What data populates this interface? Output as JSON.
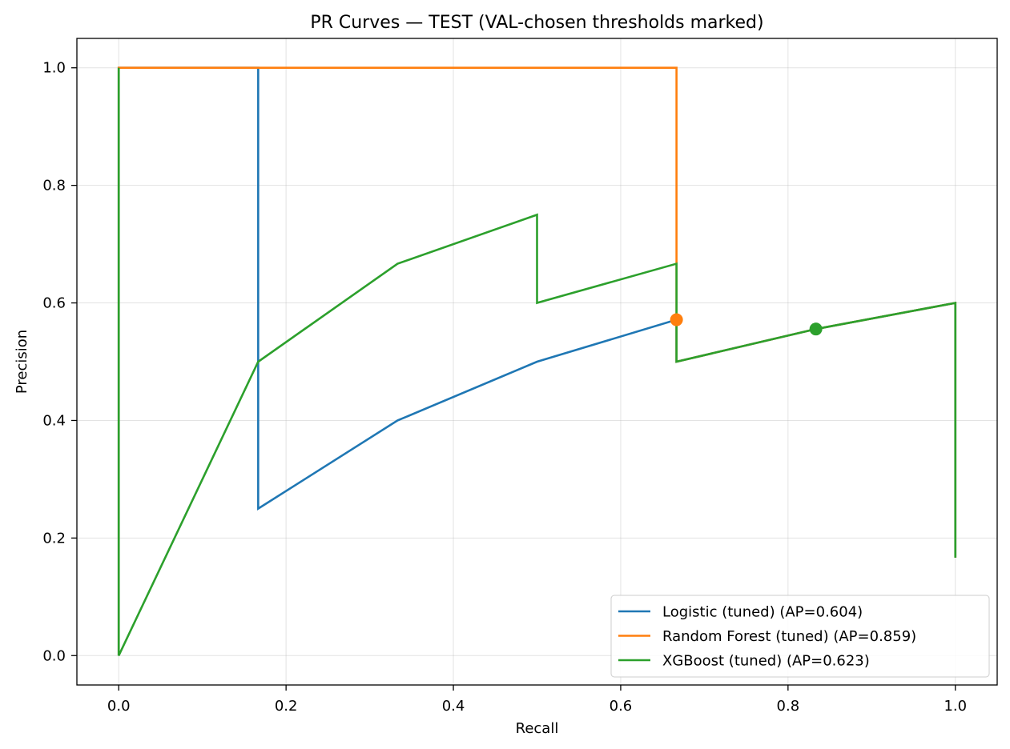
{
  "chart_data": {
    "type": "line",
    "title": "PR Curves — TEST (VAL-chosen thresholds marked)",
    "xlabel": "Recall",
    "ylabel": "Precision",
    "xlim": [
      -0.05,
      1.05
    ],
    "ylim": [
      -0.05,
      1.05
    ],
    "xticks": [
      0.0,
      0.2,
      0.4,
      0.6,
      0.8,
      1.0
    ],
    "xtick_labels": [
      "0.0",
      "0.2",
      "0.4",
      "0.6",
      "0.8",
      "1.0"
    ],
    "yticks": [
      0.0,
      0.2,
      0.4,
      0.6,
      0.8,
      1.0
    ],
    "ytick_labels": [
      "0.0",
      "0.2",
      "0.4",
      "0.6",
      "0.8",
      "1.0"
    ],
    "grid": true,
    "legend_position": "lower-right",
    "series": [
      {
        "name": "Logistic (tuned) (AP=0.604)",
        "color": "#1f77b4",
        "x": [
          0.0,
          0.0,
          0.1667,
          0.1667,
          0.3333,
          0.5,
          0.6667,
          0.6667,
          0.8333,
          1.0,
          1.0
        ],
        "y": [
          0.0,
          1.0,
          1.0,
          0.25,
          0.4,
          0.5,
          0.5714,
          0.5,
          0.5556,
          0.6,
          0.1667
        ],
        "threshold_point": null
      },
      {
        "name": "Random Forest (tuned) (AP=0.859)",
        "color": "#ff7f0e",
        "x": [
          0.0,
          0.0,
          0.6667,
          0.6667,
          0.6667,
          0.8333,
          1.0,
          1.0
        ],
        "y": [
          0.0,
          1.0,
          1.0,
          0.5714,
          0.5,
          0.5556,
          0.6,
          0.1667
        ],
        "threshold_point": {
          "x": 0.6667,
          "y": 0.5714
        }
      },
      {
        "name": "XGBoost (tuned) (AP=0.623)",
        "color": "#2ca02c",
        "x": [
          0.0,
          0.0,
          0.0,
          0.1667,
          0.3333,
          0.5,
          0.5,
          0.6667,
          0.6667,
          0.8333,
          1.0,
          1.0
        ],
        "y": [
          1.0,
          0.0,
          0.0,
          0.5,
          0.6667,
          0.75,
          0.6,
          0.6667,
          0.5,
          0.5556,
          0.6,
          0.1667
        ],
        "threshold_point": {
          "x": 0.8333,
          "y": 0.5556
        }
      }
    ]
  }
}
